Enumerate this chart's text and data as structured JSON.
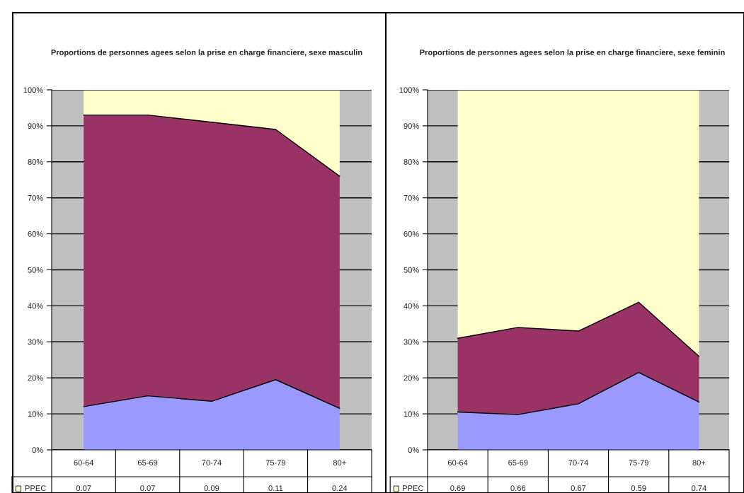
{
  "chart_data": [
    {
      "type": "area",
      "stacked": true,
      "title": "Proportions de personnes agees selon la prise en charge financiere, sexe masculin",
      "categories": [
        "60-64",
        "65-69",
        "70-74",
        "75-79",
        "80+"
      ],
      "ylim": [
        0,
        1
      ],
      "yticks": [
        {
          "value": 0,
          "label": "0%"
        },
        {
          "value": 0.1,
          "label": "10%"
        },
        {
          "value": 0.2,
          "label": "20%"
        },
        {
          "value": 0.3,
          "label": "30%"
        },
        {
          "value": 0.4,
          "label": "40%"
        },
        {
          "value": 0.5,
          "label": "50%"
        },
        {
          "value": 0.6,
          "label": "60%"
        },
        {
          "value": 0.7,
          "label": "70%"
        },
        {
          "value": 0.8,
          "label": "80%"
        },
        {
          "value": 0.9,
          "label": "90%"
        },
        {
          "value": 1,
          "label": "100%"
        }
      ],
      "grid": "y",
      "legend": "bottom left",
      "series": [
        {
          "color": "#9999ff",
          "values": [
            0.12,
            0.15,
            0.135,
            0.195,
            0.115
          ]
        },
        {
          "color": "#993366",
          "values": [
            0.81,
            0.78,
            0.775,
            0.695,
            0.645
          ]
        },
        {
          "name": "PPEC",
          "color": "#ffffcc",
          "values": [
            0.07,
            0.07,
            0.09,
            0.11,
            0.24
          ],
          "value_labels": [
            "0.07",
            "0.07",
            "0.09",
            "0.11",
            "0.24"
          ]
        }
      ]
    },
    {
      "type": "area",
      "stacked": true,
      "title": "Proportions de personnes agees selon la prise en charge financiere, sexe feminin",
      "categories": [
        "60-64",
        "65-69",
        "70-74",
        "75-79",
        "80+"
      ],
      "ylim": [
        0,
        1
      ],
      "yticks": [
        {
          "value": 0,
          "label": "0%"
        },
        {
          "value": 0.1,
          "label": "10%"
        },
        {
          "value": 0.2,
          "label": "20%"
        },
        {
          "value": 0.3,
          "label": "30%"
        },
        {
          "value": 0.4,
          "label": "40%"
        },
        {
          "value": 0.5,
          "label": "50%"
        },
        {
          "value": 0.6,
          "label": "60%"
        },
        {
          "value": 0.7,
          "label": "70%"
        },
        {
          "value": 0.8,
          "label": "80%"
        },
        {
          "value": 0.9,
          "label": "90%"
        },
        {
          "value": 1,
          "label": "100%"
        }
      ],
      "grid": "y",
      "legend": "bottom left",
      "series": [
        {
          "color": "#9999ff",
          "values": [
            0.105,
            0.098,
            0.128,
            0.215,
            0.133
          ]
        },
        {
          "color": "#993366",
          "values": [
            0.205,
            0.242,
            0.202,
            0.195,
            0.127
          ]
        },
        {
          "name": "PPEC",
          "color": "#ffffcc",
          "values": [
            0.69,
            0.66,
            0.67,
            0.59,
            0.74
          ],
          "value_labels": [
            "0.69",
            "0.66",
            "0.67",
            "0.59",
            "0.74"
          ]
        }
      ]
    }
  ]
}
